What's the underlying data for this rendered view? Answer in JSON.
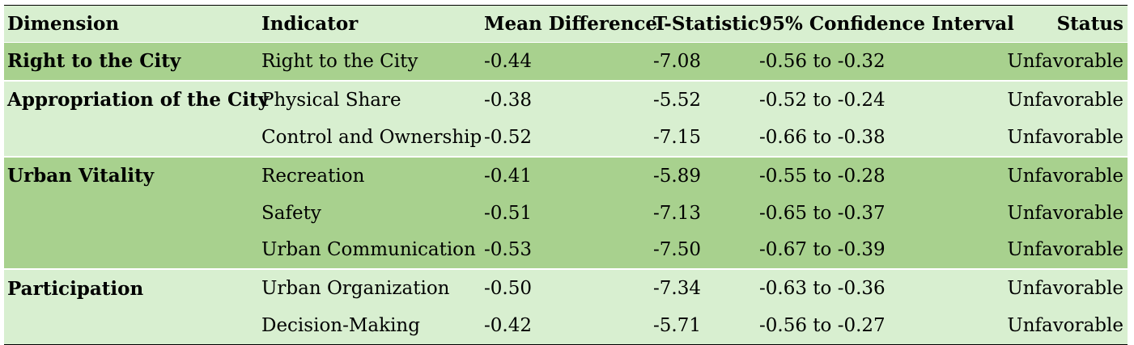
{
  "headers": [
    "Dimension",
    "Indicator",
    "Mean Difference",
    "T-Statistic",
    "95% Confidence Interval",
    "Status"
  ],
  "groups": [
    {
      "dimension": "Right to the City",
      "shade": "dark",
      "rows": [
        {
          "indicator": "Right to the City",
          "mean": "-0.44",
          "t": "-7.08",
          "ci": "-0.56 to -0.32",
          "status": "Unfavorable"
        }
      ]
    },
    {
      "dimension": "Appropriation of the City",
      "shade": "light",
      "rows": [
        {
          "indicator": "Physical Share",
          "mean": "-0.38",
          "t": "-5.52",
          "ci": "-0.52 to -0.24",
          "status": "Unfavorable"
        },
        {
          "indicator": "Control and Ownership",
          "mean": "-0.52",
          "t": "-7.15",
          "ci": "-0.66 to -0.38",
          "status": "Unfavorable"
        }
      ]
    },
    {
      "dimension": "Urban Vitality",
      "shade": "dark",
      "rows": [
        {
          "indicator": "Recreation",
          "mean": "-0.41",
          "t": "-5.89",
          "ci": "-0.55 to -0.28",
          "status": "Unfavorable"
        },
        {
          "indicator": "Safety",
          "mean": "-0.51",
          "t": "-7.13",
          "ci": "-0.65 to -0.37",
          "status": "Unfavorable"
        },
        {
          "indicator": "Urban Communication",
          "mean": "-0.53",
          "t": "-7.50",
          "ci": "-0.67 to -0.39",
          "status": "Unfavorable"
        }
      ]
    },
    {
      "dimension": "Participation",
      "shade": "light",
      "rows": [
        {
          "indicator": "Urban Organization",
          "mean": "-0.50",
          "t": "-7.34",
          "ci": "-0.63 to -0.36",
          "status": "Unfavorable"
        },
        {
          "indicator": "Decision-Making",
          "mean": "-0.42",
          "t": "-5.71",
          "ci": "-0.56 to -0.27",
          "status": "Unfavorable"
        }
      ]
    }
  ],
  "colors": {
    "dark": "#a8d18e",
    "light": "#d8efd0"
  }
}
